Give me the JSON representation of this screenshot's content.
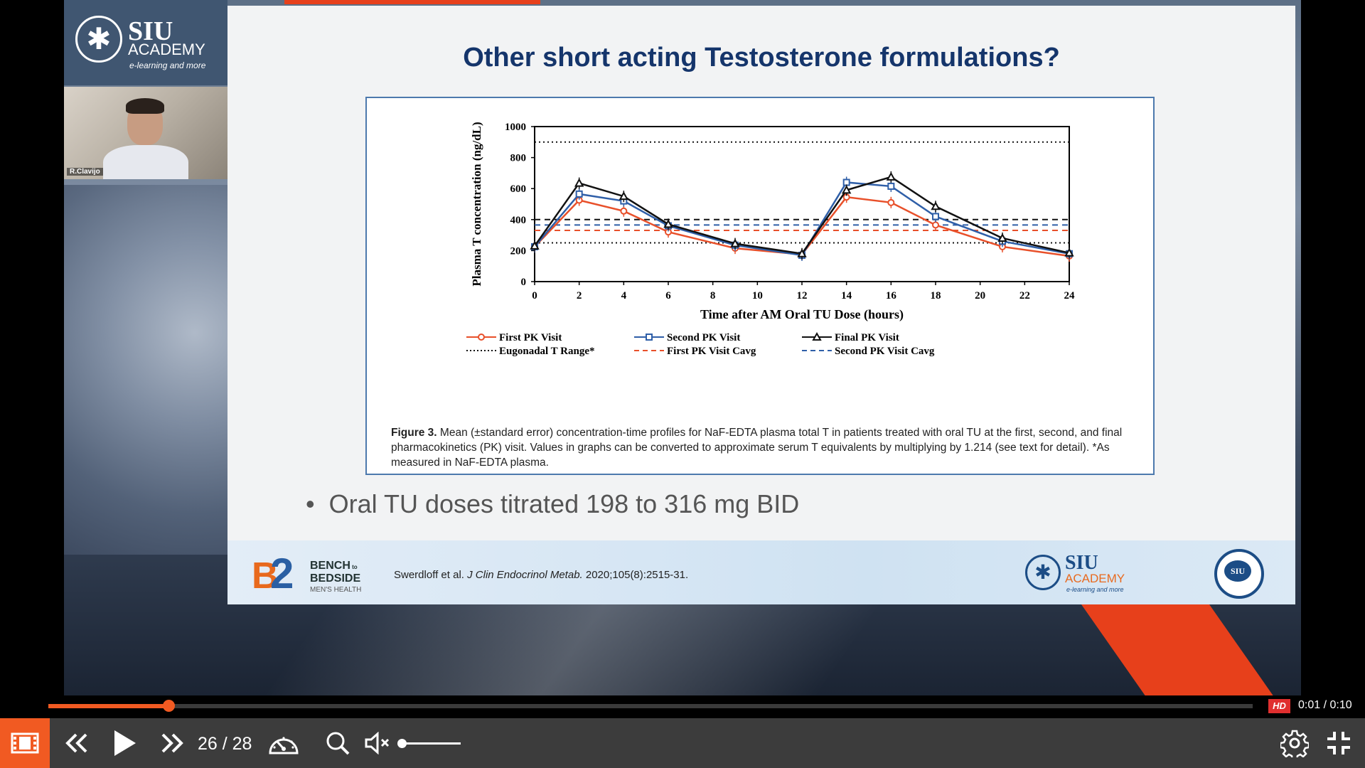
{
  "presenter": {
    "name": "R.Clavijo"
  },
  "logo": {
    "siu": "SIU",
    "academy": "ACADEMY",
    "tagline": "e-learning and more"
  },
  "slide": {
    "title": "Other short acting Testosterone formulations?",
    "caption_bold": "Figure 3.",
    "caption": "Mean (±standard error) concentration-time profiles for NaF-EDTA plasma total T in patients treated with oral TU at the first, second, and final pharmacokinetics (PK) visit. Values in graphs can be converted to approximate serum T equivalents by multiplying by 1.214 (see text for detail). *As measured in NaF-EDTA plasma.",
    "bullet": "Oral TU doses titrated 198 to 316 mg BID",
    "footer": {
      "b2b_line1": "BENCH",
      "b2b_to": "to",
      "b2b_line2": "BEDSIDE",
      "b2b_sub": "MEN'S HEALTH",
      "citation_authors": "Swerdloff et al.",
      "citation_journal": "J Clin Endocrinol Metab.",
      "citation_rest": "2020;105(8):2515-31.",
      "siu": "SIU",
      "academy": "ACADEMY",
      "tagline": "e-learning and more",
      "seal_text": "SIU"
    }
  },
  "chart_data": {
    "type": "line",
    "xlabel": "Time after AM Oral TU Dose (hours)",
    "ylabel": "Plasma T concentration (ng/dL)",
    "xlim": [
      0,
      24
    ],
    "ylim": [
      0,
      1000
    ],
    "xticks": [
      0,
      2,
      4,
      6,
      8,
      10,
      12,
      14,
      16,
      18,
      20,
      22,
      24
    ],
    "yticks": [
      0,
      200,
      400,
      600,
      800,
      1000
    ],
    "series": [
      {
        "name": "First PK Visit",
        "color": "#e8502a",
        "marker": "circle",
        "x": [
          0,
          2,
          4,
          6,
          9,
          12,
          14,
          16,
          18,
          21,
          24
        ],
        "y": [
          225,
          525,
          455,
          320,
          215,
          175,
          545,
          510,
          365,
          225,
          165
        ]
      },
      {
        "name": "Second PK Visit",
        "color": "#2f5fa8",
        "marker": "square",
        "x": [
          0,
          2,
          4,
          6,
          9,
          12,
          14,
          16,
          18,
          21,
          24
        ],
        "y": [
          225,
          565,
          520,
          360,
          235,
          170,
          640,
          615,
          420,
          260,
          180
        ]
      },
      {
        "name": "Final PK Visit",
        "color": "#111111",
        "marker": "triangle",
        "x": [
          0,
          2,
          4,
          6,
          9,
          12,
          14,
          16,
          18,
          21,
          24
        ],
        "y": [
          230,
          635,
          550,
          370,
          245,
          180,
          590,
          675,
          485,
          280,
          185
        ]
      }
    ],
    "reference_lines": [
      {
        "name": "Eugonadal T Range*",
        "style": "dotted",
        "color": "#111111",
        "values": [
          250,
          900
        ]
      },
      {
        "name": "First PK Visit Cavg",
        "style": "dashed",
        "color": "#e8502a",
        "values": [
          330
        ]
      },
      {
        "name": "Second PK Visit Cavg",
        "style": "dashed",
        "color": "#2f5fa8",
        "values": [
          365
        ]
      },
      {
        "name": "",
        "style": "dashed",
        "color": "#111111",
        "values": [
          400
        ]
      }
    ],
    "legend": [
      {
        "label": "First PK Visit",
        "color": "#e8502a",
        "style": "solid",
        "marker": "circle"
      },
      {
        "label": "Second PK Visit",
        "color": "#2f5fa8",
        "style": "solid",
        "marker": "square"
      },
      {
        "label": "Final PK Visit",
        "color": "#111111",
        "style": "solid",
        "marker": "triangle"
      },
      {
        "label": "Eugonadal T Range*",
        "color": "#111111",
        "style": "dotted",
        "marker": ""
      },
      {
        "label": "First PK Visit Cavg",
        "color": "#e8502a",
        "style": "dashed",
        "marker": ""
      },
      {
        "label": "Second PK Visit Cavg",
        "color": "#2f5fa8",
        "style": "dashed",
        "marker": ""
      }
    ],
    "legend_position": "bottom"
  },
  "player": {
    "progress_fraction": 0.1,
    "time": "0:01 / 0:10",
    "hd_label": "HD",
    "page": "26 / 28",
    "volume_fraction": 0.0,
    "accent": "#f15a22",
    "icons": [
      "film-icon",
      "rewind-icon",
      "play-icon",
      "fast-forward-icon",
      "speed-gauge-icon",
      "search-icon",
      "mute-icon",
      "settings-gear-icon",
      "exit-fullscreen-icon"
    ]
  }
}
